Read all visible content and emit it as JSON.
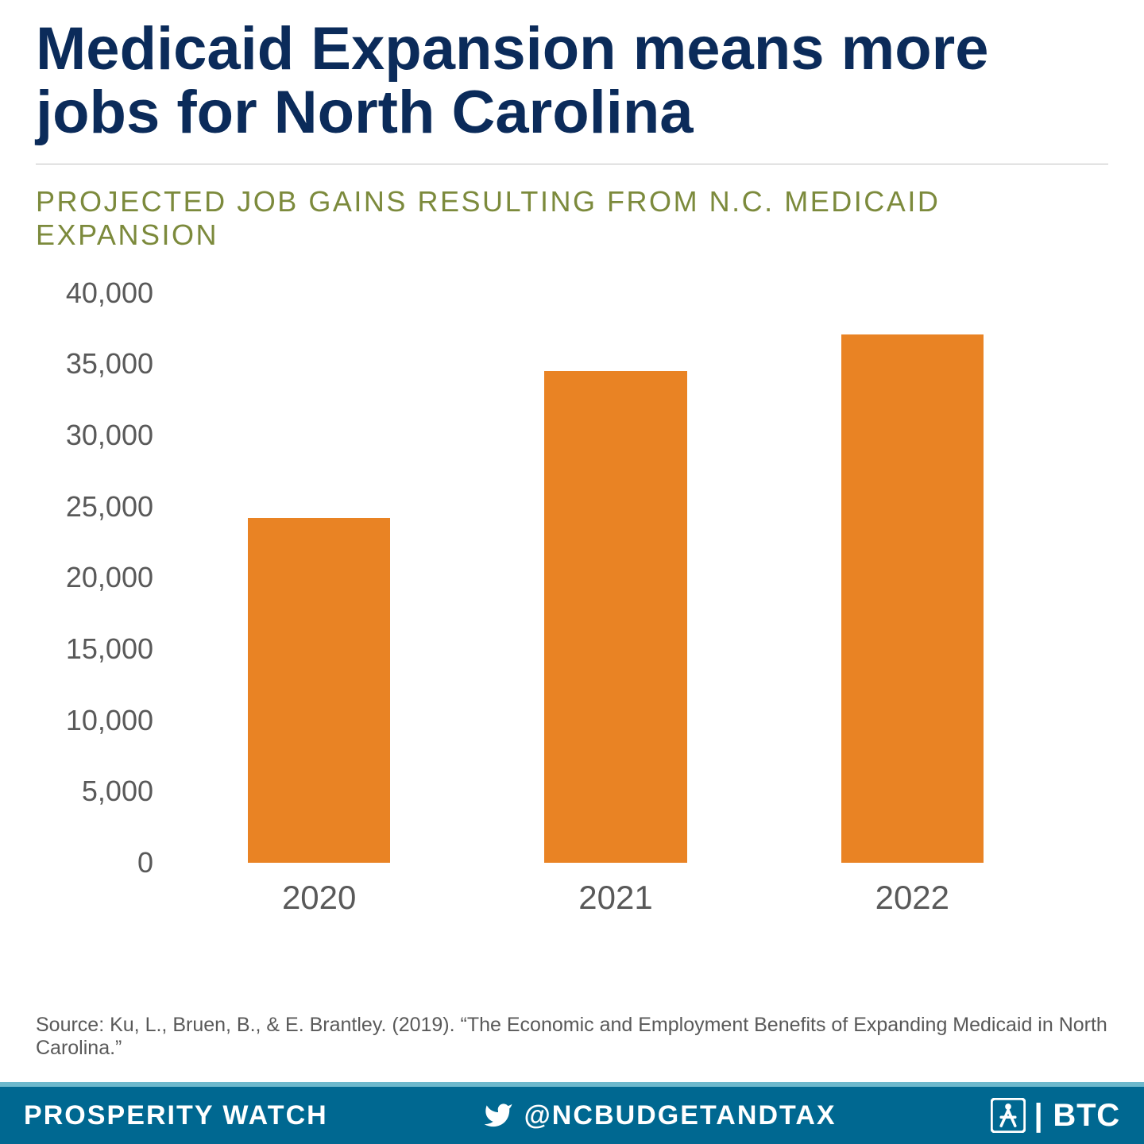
{
  "title": "Medicaid Expansion means more jobs for North Carolina",
  "subtitle": "PROJECTED JOB GAINS RESULTING FROM N.C. MEDICAID EXPANSION",
  "source": "Source: Ku, L., Bruen, B., & E. Brantley. (2019).  “The Economic and Employment Benefits of Expanding Medicaid in North Carolina.”",
  "chart": {
    "type": "bar",
    "categories": [
      "2020",
      "2021",
      "2022"
    ],
    "values": [
      24200,
      34500,
      37100
    ],
    "bar_color": "#e98324",
    "ylim": [
      0,
      40000
    ],
    "yticks": [
      0,
      5000,
      10000,
      15000,
      20000,
      25000,
      30000,
      35000,
      40000
    ],
    "ytick_labels": [
      "0",
      "5,000",
      "10,000",
      "15,000",
      "20,000",
      "25,000",
      "30,000",
      "35,000",
      "40,000"
    ],
    "tick_color": "#595959",
    "tick_fontsize": 36,
    "xlabel_fontsize": 42,
    "xlabel_color": "#595959",
    "background_color": "#ffffff",
    "bar_width_pct": 48
  },
  "typography": {
    "title_color": "#0b2b5a",
    "title_fontsize": 76,
    "title_weight": 800,
    "subtitle_color": "#7c8a3c",
    "subtitle_fontsize": 36,
    "source_color": "#595959",
    "source_fontsize": 25
  },
  "footer": {
    "bg_color": "#006891",
    "border_top_color": "#6db8cc",
    "text_color": "#ffffff",
    "left": "PROSPERITY WATCH",
    "handle": "@NCBUDGETANDTAX",
    "right_text": " | BTC",
    "fontsize": 34
  }
}
